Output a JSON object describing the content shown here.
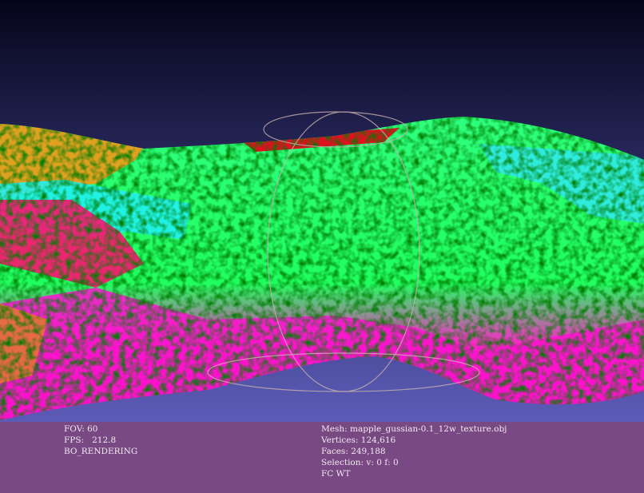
{
  "info_left": [
    "FOV: 60",
    "FPS:   212.8",
    "BO_RENDERING"
  ],
  "info_right": [
    "Mesh: mapple_gussian-0.1_12w_texture.obj",
    "Vertices: 124,616",
    "Faces: 249,188",
    "Selection: v: 0 f: 0",
    "FC WT"
  ]
}
